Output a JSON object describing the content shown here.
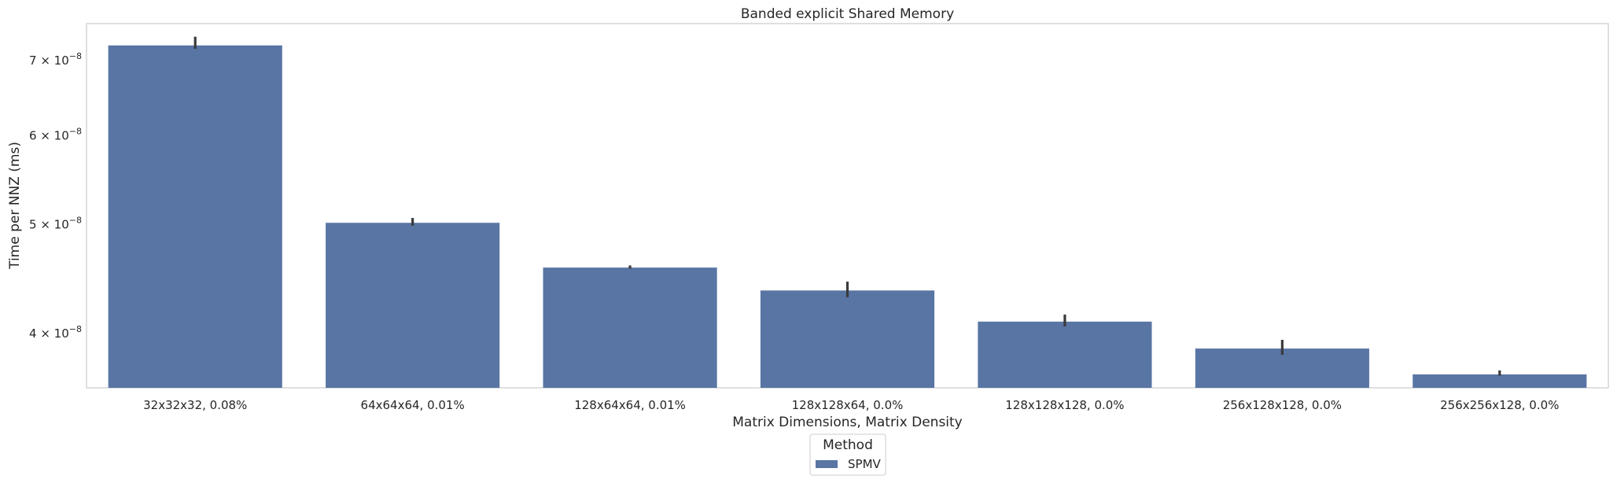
{
  "chart_data": {
    "type": "bar",
    "title": "Banded explicit Shared Memory",
    "xlabel": "Matrix Dimensions, Matrix Density",
    "ylabel": "Time per NNZ (ms)",
    "yscale": "log",
    "ylim": [
      3.58e-08,
      7.55e-08
    ],
    "yticks": [
      4e-08,
      5e-08,
      6e-08,
      7e-08
    ],
    "ytick_mantissas": [
      "4",
      "5",
      "6",
      "7"
    ],
    "ytick_exponent": "−8",
    "categories": [
      "32x32x32, 0.08%",
      "64x64x64, 0.01%",
      "128x64x64, 0.01%",
      "128x128x64, 0.0%",
      "128x128x128, 0.0%",
      "256x128x128, 0.0%",
      "256x256x128, 0.0%"
    ],
    "series": [
      {
        "name": "SPMV",
        "color": "#5875a4",
        "values": [
          7.22e-08,
          5.02e-08,
          4.58e-08,
          4.37e-08,
          4.1e-08,
          3.88e-08,
          3.68e-08
        ],
        "err_low": [
          7.17e-08,
          4.99e-08,
          4.57e-08,
          4.31e-08,
          4.06e-08,
          3.83e-08,
          3.67e-08
        ],
        "err_high": [
          7.35e-08,
          5.07e-08,
          4.6e-08,
          4.45e-08,
          4.16e-08,
          3.95e-08,
          3.71e-08
        ]
      }
    ],
    "grid": false,
    "legend": {
      "title": "Method",
      "placement": "bottom-center"
    }
  }
}
